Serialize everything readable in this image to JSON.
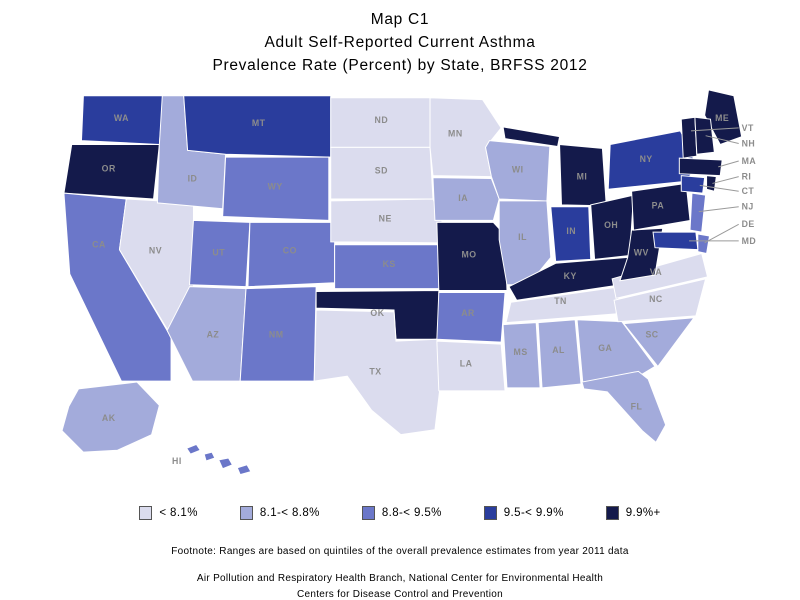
{
  "title": {
    "line1": "Map C1",
    "line2": "Adult Self-Reported Current Asthma",
    "line3": "Prevalence Rate (Percent) by State, BRFSS 2012"
  },
  "legend": {
    "classes": [
      {
        "label": "< 8.1%",
        "color": "#dbdcee"
      },
      {
        "label": "8.1-< 8.8%",
        "color": "#a3abdb"
      },
      {
        "label": "8.8-< 9.5%",
        "color": "#6b77c9"
      },
      {
        "label": "9.5-< 9.9%",
        "color": "#2a3d9d"
      },
      {
        "label": "9.9%+",
        "color": "#141a4b"
      }
    ]
  },
  "map_data": {
    "type": "choropleth",
    "states": [
      {
        "abbr": "WA",
        "class": 4
      },
      {
        "abbr": "OR",
        "class": 5
      },
      {
        "abbr": "CA",
        "class": 3
      },
      {
        "abbr": "NV",
        "class": 1
      },
      {
        "abbr": "ID",
        "class": 2
      },
      {
        "abbr": "MT",
        "class": 4
      },
      {
        "abbr": "WY",
        "class": 3
      },
      {
        "abbr": "UT",
        "class": 3
      },
      {
        "abbr": "CO",
        "class": 3
      },
      {
        "abbr": "AZ",
        "class": 2
      },
      {
        "abbr": "NM",
        "class": 3
      },
      {
        "abbr": "ND",
        "class": 1
      },
      {
        "abbr": "SD",
        "class": 1
      },
      {
        "abbr": "NE",
        "class": 1
      },
      {
        "abbr": "KS",
        "class": 3
      },
      {
        "abbr": "OK",
        "class": 5
      },
      {
        "abbr": "TX",
        "class": 1
      },
      {
        "abbr": "MN",
        "class": 1
      },
      {
        "abbr": "IA",
        "class": 2
      },
      {
        "abbr": "MO",
        "class": 5
      },
      {
        "abbr": "AR",
        "class": 3
      },
      {
        "abbr": "LA",
        "class": 1
      },
      {
        "abbr": "WI",
        "class": 2
      },
      {
        "abbr": "IL",
        "class": 2
      },
      {
        "abbr": "MI",
        "class": 5
      },
      {
        "abbr": "IN",
        "class": 4
      },
      {
        "abbr": "OH",
        "class": 5
      },
      {
        "abbr": "KY",
        "class": 5
      },
      {
        "abbr": "TN",
        "class": 1
      },
      {
        "abbr": "MS",
        "class": 2
      },
      {
        "abbr": "AL",
        "class": 2
      },
      {
        "abbr": "GA",
        "class": 2
      },
      {
        "abbr": "FL",
        "class": 2
      },
      {
        "abbr": "SC",
        "class": 2
      },
      {
        "abbr": "NC",
        "class": 1
      },
      {
        "abbr": "VA",
        "class": 1
      },
      {
        "abbr": "WV",
        "class": 5
      },
      {
        "abbr": "PA",
        "class": 5
      },
      {
        "abbr": "NY",
        "class": 4
      },
      {
        "abbr": "ME",
        "class": 5
      },
      {
        "abbr": "VT",
        "class": 5
      },
      {
        "abbr": "NH",
        "class": 5
      },
      {
        "abbr": "MA",
        "class": 5
      },
      {
        "abbr": "CT",
        "class": 4
      },
      {
        "abbr": "RI",
        "class": 5
      },
      {
        "abbr": "NJ",
        "class": 3
      },
      {
        "abbr": "DE",
        "class": 3
      },
      {
        "abbr": "MD",
        "class": 4
      },
      {
        "abbr": "AK",
        "class": 2
      },
      {
        "abbr": "HI",
        "class": 3
      }
    ]
  },
  "footnote": "Footnote: Ranges are based on quintiles of the overall prevalence estimates from year 2011 data",
  "credits": {
    "line1": "Air Pollution and Respiratory Health Branch, National Center for Environmental Health",
    "line2": "Centers for Disease Control and Prevention"
  }
}
